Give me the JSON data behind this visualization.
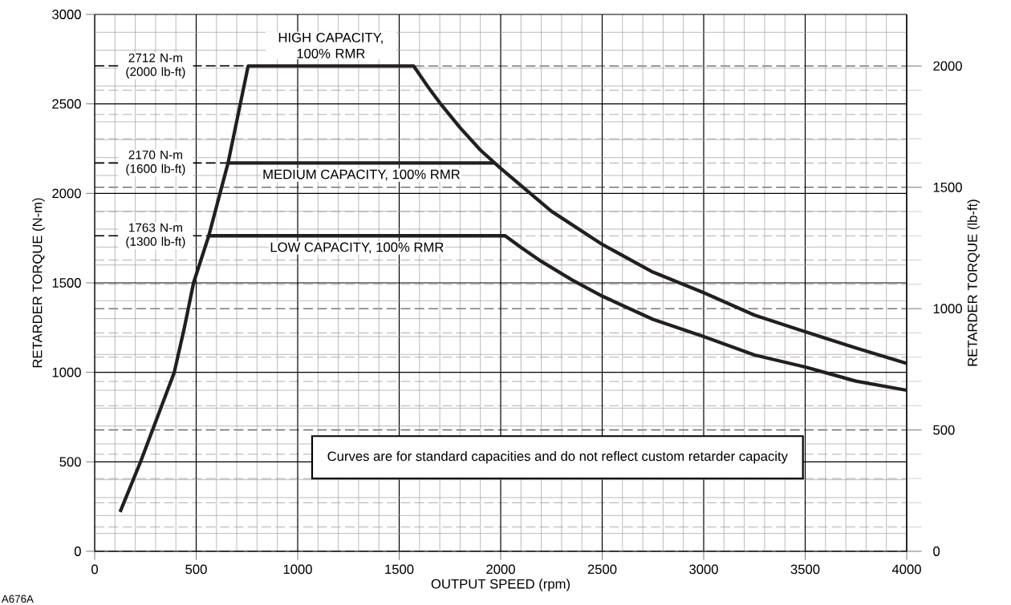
{
  "chart_data": {
    "type": "line",
    "xlabel": "OUTPUT SPEED (rpm)",
    "ylabel": "RETARDER TORQUE (N-m)",
    "y2label": "RETARDER TORQUE (lb-ft)",
    "xlim": [
      0,
      4000
    ],
    "xticks": [
      0,
      500,
      1000,
      1500,
      2000,
      2500,
      3000,
      3500,
      4000
    ],
    "ylim": [
      0,
      3000
    ],
    "yticks": [
      0,
      500,
      1000,
      1500,
      2000,
      2500,
      3000
    ],
    "y2lim": [
      0,
      2212.4
    ],
    "y2ticks": [
      0,
      500,
      1000,
      1500,
      2000
    ],
    "grid": true,
    "legend": false,
    "marker": "none",
    "line_style": "solid",
    "series": [
      {
        "name": "HIGH CAPACITY, 100% RMR",
        "color": "#231f20",
        "x": [
          125,
          226,
          309,
          392,
          442,
          487,
          562,
          657,
          756,
          1571,
          1650,
          1700,
          1800,
          1900,
          2000,
          2250,
          2500,
          2750,
          3000,
          3250,
          3500,
          3750,
          4000
        ],
        "values": [
          220,
          500,
          750,
          1000,
          1250,
          1500,
          1763,
          2170,
          2712,
          2712,
          2582,
          2506,
          2367,
          2242,
          2140,
          1900,
          1715,
          1560,
          1445,
          1320,
          1227,
          1136,
          1050
        ]
      },
      {
        "name": "MEDIUM CAPACITY, 100% RMR",
        "color": "#231f20",
        "x": [
          657,
          1971
        ],
        "values": [
          2170,
          2170
        ]
      },
      {
        "name": "LOW CAPACITY, 100% RMR",
        "color": "#231f20",
        "x": [
          562,
          2022,
          2100,
          2200,
          2350,
          2500,
          2750,
          3000,
          3250,
          3500,
          3750,
          4000
        ],
        "values": [
          1763,
          1763,
          1698,
          1620,
          1517,
          1426,
          1296,
          1200,
          1097,
          1030,
          951,
          900
        ]
      }
    ],
    "ref_lines": [
      {
        "axis": "y",
        "value": 2712,
        "label": "2712 N-m (2000 lb-ft)",
        "line_style": "dashed"
      },
      {
        "axis": "y",
        "value": 2170,
        "label": "2170 N-m (1600 lb-ft)",
        "line_style": "dashed"
      },
      {
        "axis": "y",
        "value": 1763,
        "label": "1763 N-m (1300 lb-ft)",
        "line_style": "dashed"
      }
    ],
    "annotations": [
      "Curves are for standard capacities and do not reflect custom retarder capacity",
      "A676A"
    ]
  }
}
